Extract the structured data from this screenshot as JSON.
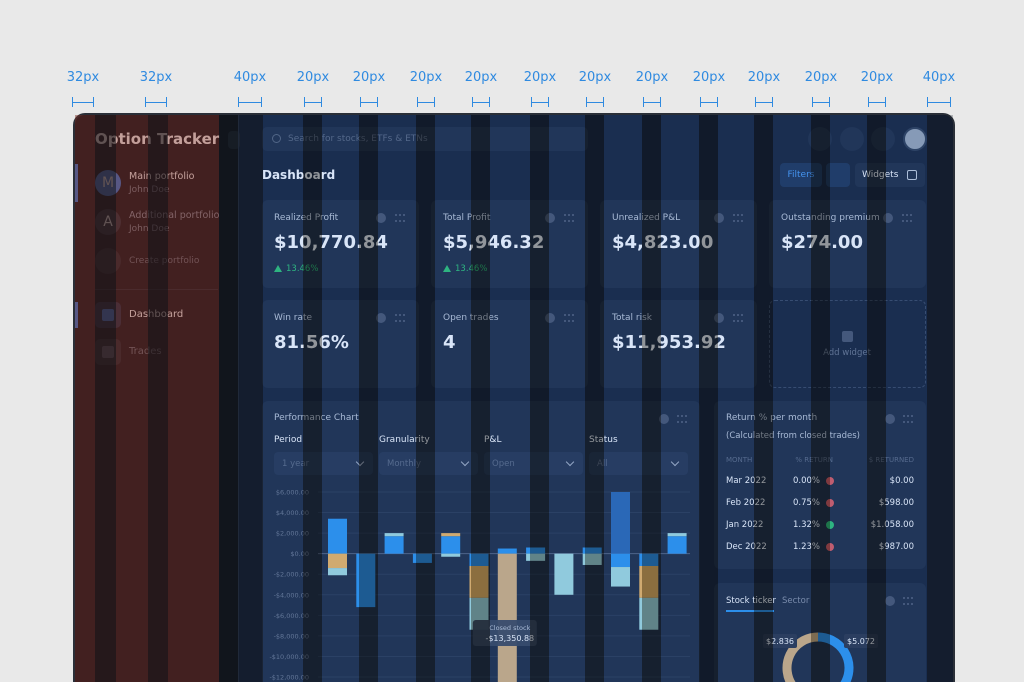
{
  "guides": [
    "32px",
    "32px",
    "40px",
    "20px",
    "20px",
    "20px",
    "20px",
    "20px",
    "20px",
    "20px",
    "20px",
    "20px",
    "20px",
    "20px",
    "40px"
  ],
  "sidebar": {
    "brand": "Option Tracker",
    "portfolios": [
      {
        "avatar": "M",
        "name": "Main portfolio",
        "owner": "John Doe",
        "color": "#3b7dd8"
      },
      {
        "avatar": "A",
        "name": "Additional portfolio",
        "owner": "John Doe",
        "color": "#2b3342"
      }
    ],
    "create": "Create portfolio",
    "nav": [
      "Dashboard",
      "Trades"
    ]
  },
  "search": "Search for stocks, ETFs & ETNs",
  "header": {
    "title": "Dashboard",
    "filters": "Filters",
    "widgets": "Widgets"
  },
  "cards": [
    {
      "label": "Realized Profit",
      "value": "$10,770.84",
      "change": "13.46%"
    },
    {
      "label": "Total Profit",
      "value": "$5,946.32",
      "change": "13.46%"
    },
    {
      "label": "Unrealized P&L",
      "value": "$4,823.00"
    },
    {
      "label": "Outstanding premium",
      "value": "$274.00"
    },
    {
      "label": "Win rate",
      "value": "81.56%"
    },
    {
      "label": "Open trades",
      "value": "4"
    },
    {
      "label": "Total risk",
      "value": "$11,953.92"
    }
  ],
  "add_widget": "Add widget",
  "performance_chart": {
    "title": "Performance Chart",
    "filters": [
      {
        "label": "Period",
        "value": "1 year"
      },
      {
        "label": "Granularity",
        "value": "Monthly"
      },
      {
        "label": "P&L",
        "value": "Open"
      },
      {
        "label": "Status",
        "value": "All"
      }
    ],
    "ylim": [
      -12000,
      6000
    ],
    "yticks": [
      {
        "value": 6000,
        "label": "$6,000.00"
      },
      {
        "value": 4000,
        "label": "$4,000.00"
      },
      {
        "value": 2000,
        "label": "$2,000.00"
      },
      {
        "value": 0,
        "label": "$0.00"
      },
      {
        "value": -2000,
        "label": "-$2,000.00"
      },
      {
        "value": -4000,
        "label": "-$4,000.00"
      },
      {
        "value": -6000,
        "label": "-$6,000.00"
      },
      {
        "value": -8000,
        "label": "-$8,000.00"
      },
      {
        "value": -10000,
        "label": "-$10,000.00"
      },
      {
        "value": -12000,
        "label": "-$12,000.00"
      }
    ],
    "bars": [
      [
        {
          "value": 3400,
          "color": "#2d96f0"
        },
        {
          "value": -1400,
          "color": "#f4b85a"
        },
        {
          "value": -700,
          "color": "#a6dede"
        }
      ],
      [
        {
          "value": -5200,
          "color": "#2d96f0"
        }
      ],
      [
        {
          "value": 1700,
          "color": "#2d96f0"
        },
        {
          "value": 300,
          "color": "#a6dede"
        }
      ],
      [
        {
          "value": -900,
          "color": "#2d96f0"
        }
      ],
      [
        {
          "value": 1700,
          "color": "#2d96f0"
        },
        {
          "value": 300,
          "color": "#f4b85a"
        },
        {
          "value": -300,
          "color": "#a6dede"
        }
      ],
      [
        {
          "value": -1200,
          "color": "#2d96f0"
        },
        {
          "value": -3100,
          "color": "#f4b85a"
        },
        {
          "value": -3100,
          "color": "#a6dede"
        }
      ],
      [
        {
          "value": 500,
          "color": "#2d96f0"
        },
        {
          "value": -13350.88,
          "color": "#d9b27a",
          "tooltip": "Closed stock",
          "value_label": "-$13,350.88"
        }
      ],
      [
        {
          "value": 600,
          "color": "#2d96f0"
        },
        {
          "value": -700,
          "color": "#a6dede"
        }
      ],
      [
        {
          "value": -4000,
          "color": "#a6dede"
        }
      ],
      [
        {
          "value": 600,
          "color": "#2d96f0"
        },
        {
          "value": -1100,
          "color": "#a6dede"
        }
      ],
      [
        {
          "value": 6000,
          "color": "#2a67b0"
        },
        {
          "value": -1300,
          "color": "#2d96f0"
        },
        {
          "value": -1900,
          "color": "#a6dede"
        }
      ],
      [
        {
          "value": -1200,
          "color": "#2d96f0"
        },
        {
          "value": -3100,
          "color": "#f4b85a"
        },
        {
          "value": -3100,
          "color": "#a6dede"
        }
      ],
      [
        {
          "value": 1700,
          "color": "#2d96f0"
        },
        {
          "value": 300,
          "color": "#a6dede"
        }
      ]
    ]
  },
  "returns": {
    "title": "Return % per month",
    "subtitle": "(Calculated from closed trades)",
    "columns": [
      "MONTH",
      "% RETURN",
      "$ RETURNED"
    ],
    "rows": [
      {
        "month": "Mar 2022",
        "return": "0.00%",
        "returned": "$0.00",
        "icon_color": "#e05a5a"
      },
      {
        "month": "Feb 2022",
        "return": "0.75%",
        "returned": "$598.00",
        "icon_color": "#e05a5a"
      },
      {
        "month": "Jan 2022",
        "return": "1.32%",
        "returned": "$1.058.00",
        "icon_color": "#2fc46e"
      },
      {
        "month": "Dec 2022",
        "return": "1.23%",
        "returned": "$987.00",
        "icon_color": "#e05a5a"
      }
    ]
  },
  "ticker": {
    "tabs": [
      "Stock ticker",
      "Sector"
    ],
    "segments": [
      {
        "value": 5072,
        "value_label": "$5.072",
        "color": "#2d96f0"
      },
      {
        "value": 2836,
        "value_label": "$2.836",
        "color": "#d9b27a"
      }
    ]
  }
}
